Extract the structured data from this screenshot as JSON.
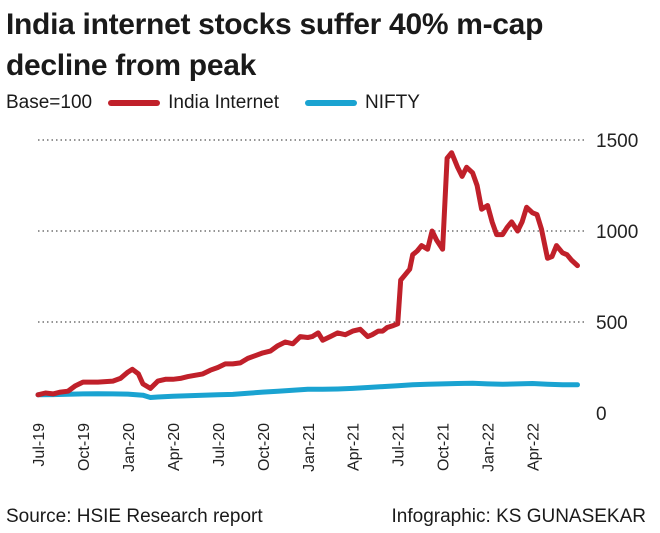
{
  "chart_data": {
    "type": "line",
    "title": "India internet stocks suffer 40% m-cap decline from peak",
    "base_label": "Base=100",
    "x_tick_labels": [
      "Jul-19",
      "Oct-19",
      "Jan-20",
      "Apr-20",
      "Jul-20",
      "Oct-20",
      "Jan-21",
      "Apr-21",
      "Jul-21",
      "Oct-21",
      "Jan-22",
      "Apr-22"
    ],
    "x_tick_months": [
      0,
      3,
      6,
      9,
      12,
      15,
      18,
      21,
      24,
      27,
      30,
      33
    ],
    "x_range_months": [
      0,
      36.5
    ],
    "ylim": [
      0,
      1500
    ],
    "y_ticks": [
      0,
      500,
      1000,
      1500
    ],
    "grid": "horizontal-dotted",
    "series": [
      {
        "name": "India Internet",
        "color": "#c0202a",
        "x_months": [
          0,
          0.5,
          1,
          1.5,
          2,
          2.5,
          3,
          4,
          5,
          5.5,
          6,
          6.3,
          6.7,
          7,
          7.5,
          8,
          8.5,
          9,
          9.5,
          10,
          11,
          11.5,
          12,
          12.5,
          13,
          13.5,
          14,
          15,
          15.5,
          16,
          16.5,
          17,
          17.5,
          18,
          18.3,
          18.7,
          19,
          19.5,
          20,
          20.5,
          21,
          21.5,
          22,
          22.3,
          22.7,
          23,
          23.3,
          23.7,
          24,
          24.2,
          24.5,
          24.8,
          25,
          25.3,
          25.6,
          26,
          26.3,
          26.6,
          27,
          27.3,
          27.6,
          28,
          28.3,
          28.6,
          29,
          29.3,
          29.6,
          30,
          30.3,
          30.6,
          31,
          31.3,
          31.6,
          32,
          32.3,
          32.6,
          33,
          33.3,
          33.6,
          34,
          34.3,
          34.6,
          35,
          35.3,
          35.6,
          36
        ],
        "values": [
          100,
          110,
          105,
          115,
          120,
          150,
          170,
          170,
          175,
          190,
          225,
          240,
          215,
          160,
          135,
          175,
          185,
          185,
          190,
          200,
          215,
          235,
          250,
          270,
          270,
          275,
          300,
          330,
          340,
          370,
          390,
          380,
          420,
          415,
          420,
          440,
          400,
          420,
          440,
          430,
          450,
          460,
          420,
          430,
          450,
          450,
          470,
          480,
          490,
          730,
          760,
          790,
          870,
          890,
          920,
          900,
          1000,
          950,
          900,
          1400,
          1430,
          1350,
          1300,
          1350,
          1320,
          1250,
          1120,
          1140,
          1050,
          980,
          980,
          1020,
          1050,
          1000,
          1050,
          1130,
          1100,
          1090,
          1010,
          850,
          860,
          920,
          880,
          870,
          840,
          810
        ]
      },
      {
        "name": "NIFTY",
        "color": "#1aa3d1",
        "x_months": [
          0,
          1,
          2,
          3,
          4,
          5,
          6,
          7,
          7.5,
          8,
          9,
          10,
          11,
          12,
          13,
          14,
          15,
          16,
          17,
          18,
          19,
          20,
          21,
          22,
          23,
          24,
          25,
          26,
          27,
          28,
          29,
          30,
          31,
          32,
          33,
          34,
          35,
          36
        ],
        "values": [
          100,
          101,
          103,
          105,
          106,
          105,
          104,
          98,
          85,
          88,
          92,
          95,
          98,
          100,
          102,
          108,
          115,
          120,
          125,
          130,
          130,
          132,
          135,
          140,
          145,
          150,
          155,
          158,
          160,
          162,
          163,
          160,
          158,
          160,
          162,
          158,
          155,
          155
        ]
      }
    ]
  },
  "footer": {
    "source": "Source: HSIE Research report",
    "credit": "Infographic: KS GUNASEKAR"
  }
}
